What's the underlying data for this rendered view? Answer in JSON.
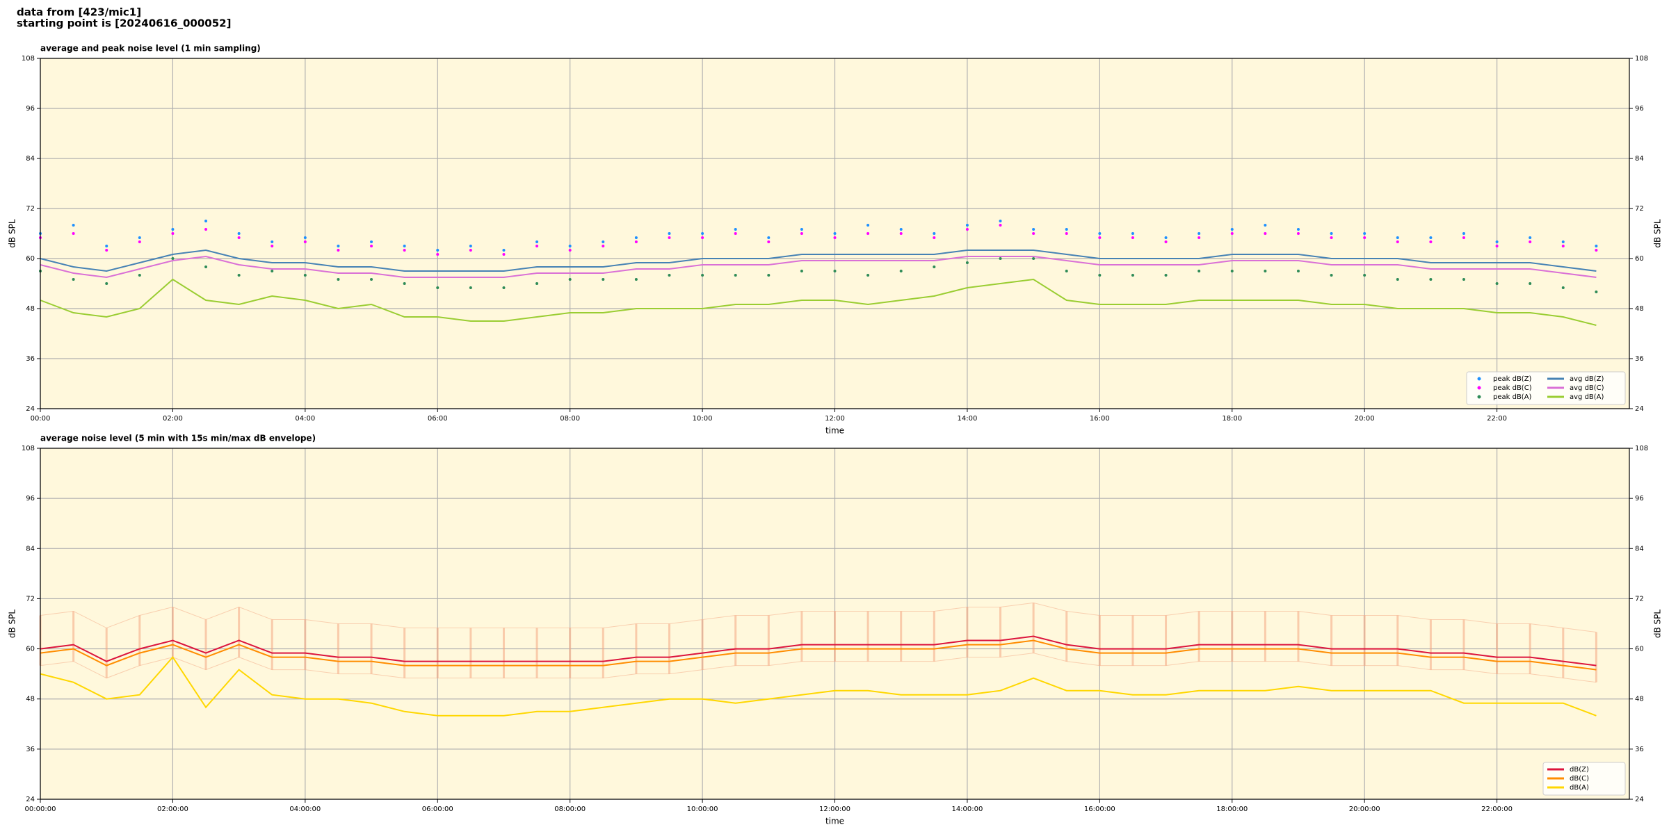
{
  "header": {
    "lines": [
      "data from [423/mic1]",
      "starting point is [20240616_000052]"
    ]
  },
  "chart_data": [
    {
      "type": "line",
      "title": "average and peak noise level (1 min sampling)",
      "xlabel": "time",
      "ylabel": "dB SPL",
      "x": [
        0,
        0.5,
        1,
        1.5,
        2,
        2.5,
        3,
        3.5,
        4,
        4.5,
        5,
        5.5,
        6,
        6.5,
        7,
        7.5,
        8,
        8.5,
        9,
        9.5,
        10,
        10.5,
        11,
        11.5,
        12,
        12.5,
        13,
        13.5,
        14,
        14.5,
        15,
        15.5,
        16,
        16.5,
        17,
        17.5,
        18,
        18.5,
        19,
        19.5,
        20,
        20.5,
        21,
        21.5,
        22,
        22.5,
        23,
        23.5
      ],
      "series": [
        {
          "name": "peak dB(Z)",
          "color": "#1e90ff",
          "mark": "dot",
          "values": [
            66,
            68,
            63,
            65,
            67,
            69,
            66,
            64,
            65,
            63,
            64,
            63,
            62,
            63,
            62,
            64,
            63,
            64,
            65,
            66,
            66,
            67,
            65,
            67,
            66,
            68,
            67,
            66,
            68,
            69,
            67,
            67,
            66,
            66,
            65,
            66,
            67,
            68,
            67,
            66,
            66,
            65,
            65,
            66,
            64,
            65,
            64,
            63
          ]
        },
        {
          "name": "peak dB(C)",
          "color": "#ff00ff",
          "mark": "dot",
          "values": [
            65,
            66,
            62,
            64,
            66,
            67,
            65,
            63,
            64,
            62,
            63,
            62,
            61,
            62,
            61,
            63,
            62,
            63,
            64,
            65,
            65,
            66,
            64,
            66,
            65,
            66,
            66,
            65,
            67,
            68,
            66,
            66,
            65,
            65,
            64,
            65,
            66,
            66,
            66,
            65,
            65,
            64,
            64,
            65,
            63,
            64,
            63,
            62
          ]
        },
        {
          "name": "peak dB(A)",
          "color": "#2e8b57",
          "mark": "dot",
          "values": [
            57,
            55,
            54,
            56,
            60,
            58,
            56,
            57,
            56,
            55,
            55,
            54,
            53,
            53,
            53,
            54,
            55,
            55,
            55,
            56,
            56,
            56,
            56,
            57,
            57,
            56,
            57,
            58,
            59,
            60,
            60,
            57,
            56,
            56,
            56,
            57,
            57,
            57,
            57,
            56,
            56,
            55,
            55,
            55,
            54,
            54,
            53,
            52
          ]
        },
        {
          "name": "avg dB(Z)",
          "color": "#4682b4",
          "mark": "line",
          "values": [
            60,
            58,
            57,
            59,
            61,
            62,
            60,
            59,
            59,
            58,
            58,
            57,
            57,
            57,
            57,
            58,
            58,
            58,
            59,
            59,
            60,
            60,
            60,
            61,
            61,
            61,
            61,
            61,
            62,
            62,
            62,
            61,
            60,
            60,
            60,
            60,
            61,
            61,
            61,
            60,
            60,
            60,
            59,
            59,
            59,
            59,
            58,
            57
          ]
        },
        {
          "name": "avg dB(C)",
          "color": "#da70d6",
          "mark": "line",
          "values": [
            58.5,
            56.5,
            55.5,
            57.5,
            59.5,
            60.5,
            58.5,
            57.5,
            57.5,
            56.5,
            56.5,
            55.5,
            55.5,
            55.5,
            55.5,
            56.5,
            56.5,
            56.5,
            57.5,
            57.5,
            58.5,
            58.5,
            58.5,
            59.5,
            59.5,
            59.5,
            59.5,
            59.5,
            60.5,
            60.5,
            60.5,
            59.5,
            58.5,
            58.5,
            58.5,
            58.5,
            59.5,
            59.5,
            59.5,
            58.5,
            58.5,
            58.5,
            57.5,
            57.5,
            57.5,
            57.5,
            56.5,
            55.5
          ]
        },
        {
          "name": "avg dB(A)",
          "color": "#9acd32",
          "mark": "line",
          "values": [
            50,
            47,
            46,
            48,
            55,
            50,
            49,
            51,
            50,
            48,
            49,
            46,
            46,
            45,
            45,
            46,
            47,
            47,
            48,
            48,
            48,
            49,
            49,
            50,
            50,
            49,
            50,
            51,
            53,
            54,
            55,
            50,
            49,
            49,
            49,
            50,
            50,
            50,
            50,
            49,
            49,
            48,
            48,
            48,
            47,
            47,
            46,
            44
          ]
        }
      ],
      "xlim": [
        0,
        24
      ],
      "xticks": [
        {
          "value": 0,
          "label": "00:00"
        },
        {
          "value": 2,
          "label": "02:00"
        },
        {
          "value": 4,
          "label": "04:00"
        },
        {
          "value": 6,
          "label": "06:00"
        },
        {
          "value": 8,
          "label": "08:00"
        },
        {
          "value": 10,
          "label": "10:00"
        },
        {
          "value": 12,
          "label": "12:00"
        },
        {
          "value": 14,
          "label": "14:00"
        },
        {
          "value": 16,
          "label": "16:00"
        },
        {
          "value": 18,
          "label": "18:00"
        },
        {
          "value": 20,
          "label": "20:00"
        },
        {
          "value": 22,
          "label": "22:00"
        }
      ],
      "ylim": [
        24,
        108
      ],
      "yticks": [
        24,
        36,
        48,
        60,
        72,
        84,
        96,
        108
      ],
      "grid": true,
      "legend": "lower right",
      "legend_columns": 2,
      "background": "#fff8dc"
    },
    {
      "type": "line",
      "title": "average noise level (5 min with 15s min/max dB envelope)",
      "xlabel": "time",
      "ylabel": "dB SPL",
      "x": [
        0,
        0.5,
        1,
        1.5,
        2,
        2.5,
        3,
        3.5,
        4,
        4.5,
        5,
        5.5,
        6,
        6.5,
        7,
        7.5,
        8,
        8.5,
        9,
        9.5,
        10,
        10.5,
        11,
        11.5,
        12,
        12.5,
        13,
        13.5,
        14,
        14.5,
        15,
        15.5,
        16,
        16.5,
        17,
        17.5,
        18,
        18.5,
        19,
        19.5,
        20,
        20.5,
        21,
        21.5,
        22,
        22.5,
        23,
        23.5
      ],
      "envelope": {
        "color": "#f4a582",
        "min": [
          56,
          57,
          53,
          56,
          58,
          55,
          58,
          55,
          55,
          54,
          54,
          53,
          53,
          53,
          53,
          53,
          53,
          53,
          54,
          54,
          55,
          56,
          56,
          57,
          57,
          57,
          57,
          57,
          58,
          58,
          59,
          57,
          56,
          56,
          56,
          57,
          57,
          57,
          57,
          56,
          56,
          56,
          55,
          55,
          54,
          54,
          53,
          52
        ],
        "max": [
          68,
          69,
          65,
          68,
          70,
          67,
          70,
          67,
          67,
          66,
          66,
          65,
          65,
          65,
          65,
          65,
          65,
          65,
          66,
          66,
          67,
          68,
          68,
          69,
          69,
          69,
          69,
          69,
          70,
          70,
          71,
          69,
          68,
          68,
          68,
          69,
          69,
          69,
          69,
          68,
          68,
          68,
          67,
          67,
          66,
          66,
          65,
          64
        ]
      },
      "series": [
        {
          "name": "dB(Z)",
          "color": "#dc143c",
          "mark": "line",
          "values": [
            60,
            61,
            57,
            60,
            62,
            59,
            62,
            59,
            59,
            58,
            58,
            57,
            57,
            57,
            57,
            57,
            57,
            57,
            58,
            58,
            59,
            60,
            60,
            61,
            61,
            61,
            61,
            61,
            62,
            62,
            63,
            61,
            60,
            60,
            60,
            61,
            61,
            61,
            61,
            60,
            60,
            60,
            59,
            59,
            58,
            58,
            57,
            56
          ]
        },
        {
          "name": "dB(C)",
          "color": "#ff8c00",
          "mark": "line",
          "values": [
            59,
            60,
            56,
            59,
            61,
            58,
            61,
            58,
            58,
            57,
            57,
            56,
            56,
            56,
            56,
            56,
            56,
            56,
            57,
            57,
            58,
            59,
            59,
            60,
            60,
            60,
            60,
            60,
            61,
            61,
            62,
            60,
            59,
            59,
            59,
            60,
            60,
            60,
            60,
            59,
            59,
            59,
            58,
            58,
            57,
            57,
            56,
            55
          ]
        },
        {
          "name": "dB(A)",
          "color": "#ffd700",
          "mark": "line",
          "values": [
            54,
            52,
            48,
            49,
            58,
            46,
            55,
            49,
            48,
            48,
            47,
            45,
            44,
            44,
            44,
            45,
            45,
            46,
            47,
            48,
            48,
            47,
            48,
            49,
            50,
            50,
            49,
            49,
            49,
            50,
            53,
            50,
            50,
            49,
            49,
            50,
            50,
            50,
            51,
            50,
            50,
            50,
            50,
            47,
            47,
            47,
            47,
            44
          ]
        }
      ],
      "xlim": [
        0,
        24
      ],
      "xticks": [
        {
          "value": 0,
          "label": "00:00:00"
        },
        {
          "value": 2,
          "label": "02:00:00"
        },
        {
          "value": 4,
          "label": "04:00:00"
        },
        {
          "value": 6,
          "label": "06:00:00"
        },
        {
          "value": 8,
          "label": "08:00:00"
        },
        {
          "value": 10,
          "label": "10:00:00"
        },
        {
          "value": 12,
          "label": "12:00:00"
        },
        {
          "value": 14,
          "label": "14:00:00"
        },
        {
          "value": 16,
          "label": "16:00:00"
        },
        {
          "value": 18,
          "label": "18:00:00"
        },
        {
          "value": 20,
          "label": "20:00:00"
        },
        {
          "value": 22,
          "label": "22:00:00"
        }
      ],
      "ylim": [
        24,
        108
      ],
      "yticks": [
        24,
        36,
        48,
        60,
        72,
        84,
        96,
        108
      ],
      "grid": true,
      "legend": "lower right",
      "legend_columns": 1,
      "background": "#fff8dc"
    }
  ]
}
